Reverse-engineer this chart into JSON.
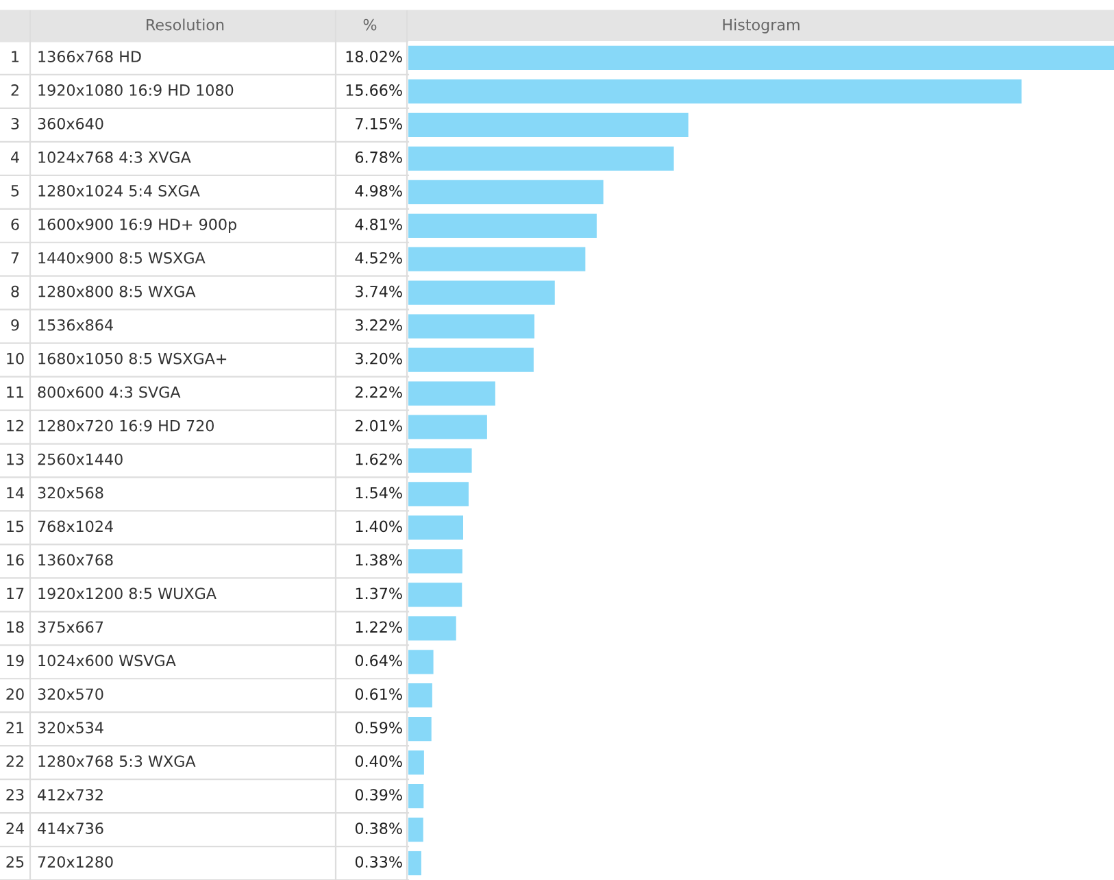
{
  "chart_data": {
    "type": "bar",
    "orientation": "horizontal",
    "ylabel": "Resolution",
    "xlabel": "Histogram",
    "annotations": [
      "%",
      "1",
      "2",
      "3",
      "4",
      "5",
      "6",
      "7",
      "8",
      "9",
      "10",
      "11",
      "12",
      "13",
      "14",
      "15",
      "16",
      "17",
      "18",
      "19",
      "20",
      "21",
      "22",
      "23",
      "24",
      "25"
    ],
    "categories": [
      "1366x768 HD",
      "1920x1080 16:9 HD 1080",
      "360x640",
      "1024x768 4:3 XVGA",
      "1280x1024 5:4 SXGA",
      "1600x900 16:9 HD+ 900p",
      "1440x900 8:5 WSXGA",
      "1280x800 8:5 WXGA",
      "1536x864",
      "1680x1050 8:5 WSXGA+",
      "800x600 4:3 SVGA",
      "1280x720 16:9 HD 720",
      "2560x1440",
      "320x568",
      "768x1024",
      "1360x768",
      "1920x1200 8:5 WUXGA",
      "375x667",
      "1024x600 WSVGA",
      "320x570",
      "320x534",
      "1280x768 5:3 WXGA",
      "412x732",
      "414x736",
      "720x1280"
    ],
    "values": [
      18.02,
      15.66,
      7.15,
      6.78,
      4.98,
      4.81,
      4.52,
      3.74,
      3.22,
      3.2,
      2.22,
      2.01,
      1.62,
      1.54,
      1.4,
      1.38,
      1.37,
      1.22,
      0.64,
      0.61,
      0.59,
      0.4,
      0.39,
      0.38,
      0.33
    ],
    "value_labels": [
      "18.02%",
      "15.66%",
      "7.15%",
      "6.78%",
      "4.98%",
      "4.81%",
      "4.52%",
      "3.74%",
      "3.22%",
      "3.20%",
      "2.22%",
      "2.01%",
      "1.62%",
      "1.54%",
      "1.40%",
      "1.38%",
      "1.37%",
      "1.22%",
      "0.64%",
      "0.61%",
      "0.59%",
      "0.40%",
      "0.39%",
      "0.38%",
      "0.33%"
    ],
    "color": "#87d8f8",
    "xlim": [
      0,
      18.02
    ],
    "tick_labels": false,
    "grid": false,
    "legend": false
  }
}
